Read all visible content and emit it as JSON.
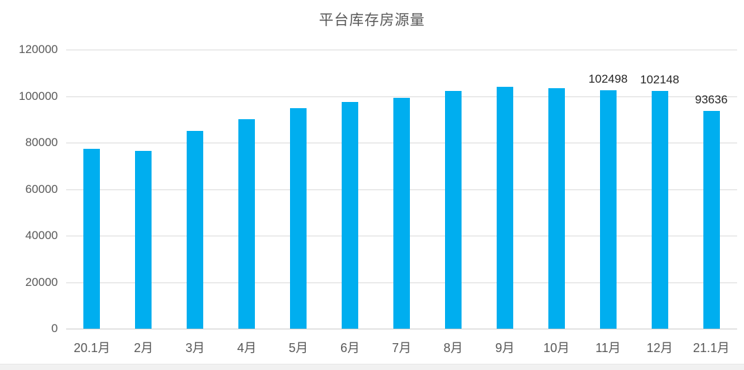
{
  "chart_data": {
    "type": "bar",
    "title": "平台库存房源量",
    "categories": [
      "20.1月",
      "2月",
      "3月",
      "4月",
      "5月",
      "6月",
      "7月",
      "8月",
      "9月",
      "10月",
      "11月",
      "12月",
      "21.1月"
    ],
    "values": [
      77300,
      76500,
      84900,
      90000,
      94700,
      97500,
      99400,
      102200,
      103900,
      103400,
      102498,
      102148,
      93636
    ],
    "data_labels": [
      null,
      null,
      null,
      null,
      null,
      null,
      null,
      null,
      null,
      null,
      "102498",
      "102148",
      "93636"
    ],
    "y_ticks": [
      0,
      20000,
      40000,
      60000,
      80000,
      100000,
      120000
    ],
    "y_tick_labels": [
      "0",
      "20000",
      "40000",
      "60000",
      "80000",
      "100000",
      "120000"
    ],
    "ylim": [
      0,
      120000
    ],
    "xlabel": "",
    "ylabel": "",
    "grid": true,
    "legend": "none",
    "colors": {
      "bar": "#00AEEF",
      "title_text": "#595959",
      "axis_text": "#595959",
      "value_label_text": "#262626",
      "gridline": "#d9d9d9",
      "background": "#ffffff",
      "bottom_strip": "#f1f1f1"
    }
  }
}
